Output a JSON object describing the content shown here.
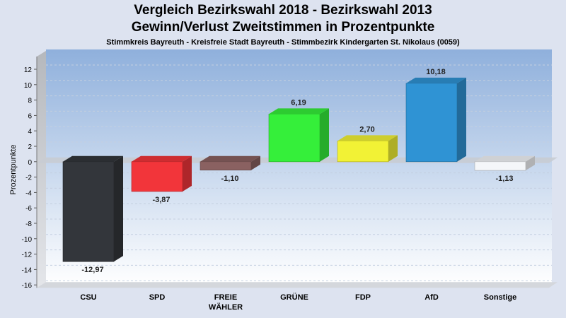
{
  "chart_data": {
    "type": "bar",
    "title": "Vergleich Bezirkswahl 2018 - Bezirkswahl 2013",
    "title2": "Gewinn/Verlust Zweitstimmen in Prozentpunkte",
    "subtitle": "Stimmkreis Bayreuth - Kreisfreie Stadt Bayreuth - Stimmbezirk Kindergarten St. Nikolaus (0059)",
    "ylabel": "Prozentpunkte",
    "ylim": [
      -16,
      12
    ],
    "yticks": [
      12,
      10,
      8,
      6,
      4,
      2,
      0,
      -2,
      -4,
      -6,
      -8,
      -10,
      -12,
      -14,
      -16
    ],
    "grid": true,
    "categories": [
      {
        "label": "CSU",
        "label2": ""
      },
      {
        "label": "SPD",
        "label2": ""
      },
      {
        "label": "FREIE",
        "label2": "WÄHLER"
      },
      {
        "label": "GRÜNE",
        "label2": ""
      },
      {
        "label": "FDP",
        "label2": ""
      },
      {
        "label": "AfD",
        "label2": ""
      },
      {
        "label": "Sonstige",
        "label2": ""
      }
    ],
    "values": [
      -12.97,
      -3.87,
      -1.1,
      6.19,
      2.7,
      10.18,
      -1.13
    ],
    "value_labels": [
      "-12,97",
      "-3,87",
      "-1,10",
      "6,19",
      "2,70",
      "10,18",
      "-1,13"
    ],
    "colors": [
      "#33363b",
      "#f2353a",
      "#8a6161",
      "#35ef3a",
      "#f2f235",
      "#2f93d4",
      "#f4f6f9"
    ]
  }
}
